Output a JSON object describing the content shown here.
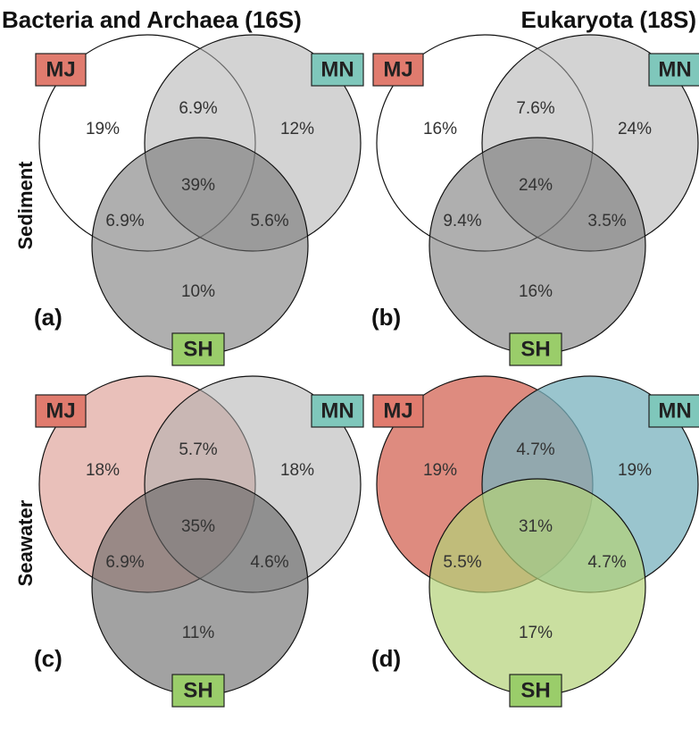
{
  "column_titles": [
    "Bacteria and Archaea (16S)",
    "Eukaryota (18S)"
  ],
  "row_labels": [
    "Sediment",
    "Seawater"
  ],
  "panels": [
    {
      "letter": "(a)",
      "sets": [
        "MJ",
        "MN",
        "SH"
      ],
      "regions": [
        "19%",
        "6.9%",
        "12%",
        "39%",
        "6.9%",
        "5.6%",
        "10%"
      ]
    },
    {
      "letter": "(b)",
      "sets": [
        "MJ",
        "MN",
        "SH"
      ],
      "regions": [
        "16%",
        "7.6%",
        "24%",
        "24%",
        "9.4%",
        "3.5%",
        "16%"
      ]
    },
    {
      "letter": "(c)",
      "sets": [
        "MJ",
        "MN",
        "SH"
      ],
      "regions": [
        "18%",
        "5.7%",
        "18%",
        "35%",
        "6.9%",
        "4.6%",
        "11%"
      ]
    },
    {
      "letter": "(d)",
      "sets": [
        "MJ",
        "MN",
        "SH"
      ],
      "regions": [
        "19%",
        "4.7%",
        "19%",
        "31%",
        "5.5%",
        "4.7%",
        "17%"
      ]
    }
  ]
}
